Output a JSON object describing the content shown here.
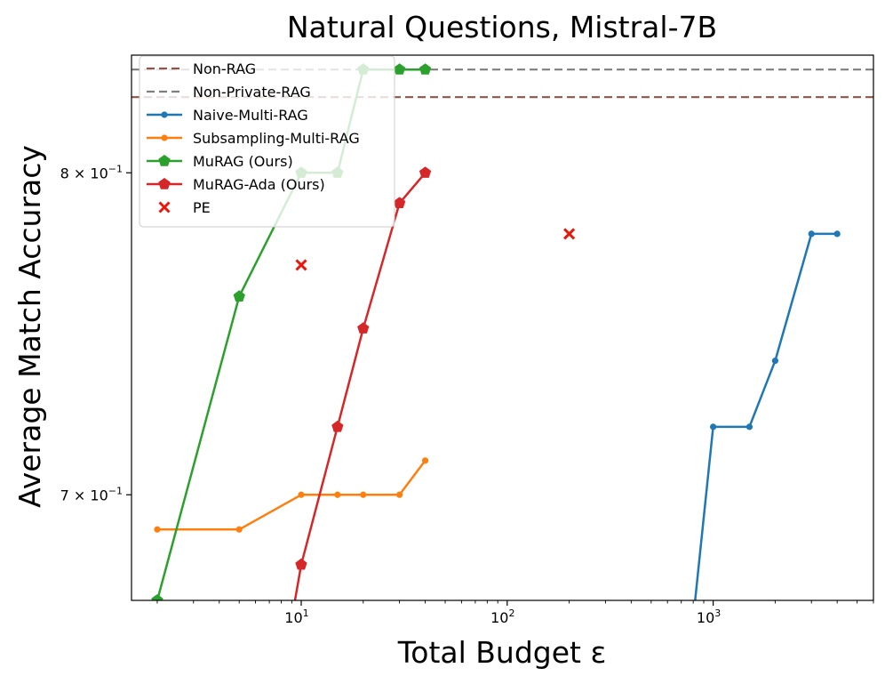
{
  "chart_data": {
    "type": "line",
    "title": "Natural Questions, Mistral-7B",
    "xlabel": "Total Budget ε",
    "ylabel": "Average Match Accuracy",
    "xscale": "log",
    "yscale": "log",
    "xlim": [
      1.5,
      6000
    ],
    "ylim": [
      0.67,
      0.84
    ],
    "grid": false,
    "legend_placement": "top-left",
    "x_ticks": [
      {
        "value": 10,
        "base": "10",
        "exp": "1"
      },
      {
        "value": 100,
        "base": "10",
        "exp": "2"
      },
      {
        "value": 1000,
        "base": "10",
        "exp": "3"
      }
    ],
    "y_ticks": [
      {
        "value": 0.7,
        "mant": "7",
        "exp": "−1"
      },
      {
        "value": 0.8,
        "mant": "8",
        "exp": "−1"
      }
    ],
    "hlines": [
      {
        "name": "Non-RAG",
        "y": 0.8255,
        "color": "#8c564b"
      },
      {
        "name": "Non-Private-RAG",
        "y": 0.835,
        "color": "#7f7f7f"
      }
    ],
    "series": [
      {
        "name": "Naive-Multi-RAG",
        "color": "#1f77b4",
        "marker": "dot",
        "x": [
          800,
          1000,
          1500,
          2000,
          3000,
          4000
        ],
        "y": [
          0.665,
          0.72,
          0.72,
          0.74,
          0.78,
          0.78
        ]
      },
      {
        "name": "Subsampling-Multi-RAG",
        "color": "#ff7f0e",
        "marker": "dot",
        "x": [
          2,
          5,
          10,
          15,
          20,
          30,
          40
        ],
        "y": [
          0.69,
          0.69,
          0.7,
          0.7,
          0.7,
          0.7,
          0.71
        ]
      },
      {
        "name": "MuRAG (Ours)",
        "color": "#2ca02c",
        "marker": "pentagon",
        "x": [
          2,
          5,
          10,
          15,
          20,
          30,
          40
        ],
        "y": [
          0.67,
          0.76,
          0.8,
          0.8,
          0.835,
          0.835,
          0.835
        ]
      },
      {
        "name": "MuRAG-Ada (Ours)",
        "color": "#d62728",
        "marker": "pentagon",
        "x": [
          9,
          10,
          15,
          20,
          30,
          40
        ],
        "y": [
          0.665,
          0.68,
          0.72,
          0.75,
          0.79,
          0.8
        ]
      },
      {
        "name": "PE",
        "color": "#e8190c",
        "marker": "x",
        "line": false,
        "x": [
          10,
          200
        ],
        "y": [
          0.77,
          0.78
        ]
      }
    ]
  }
}
